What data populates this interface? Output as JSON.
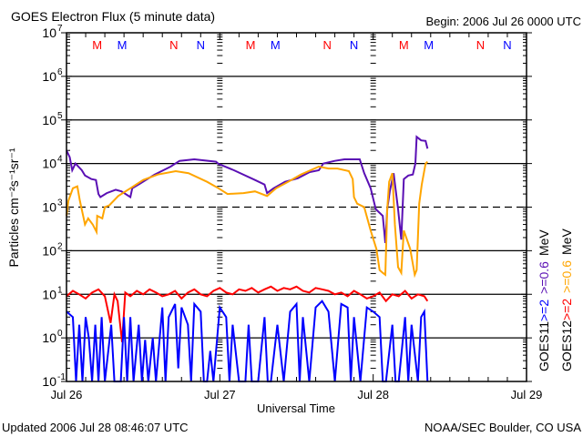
{
  "chart_data": {
    "type": "line",
    "title": "GOES Electron Flux (5 minute data)",
    "subtitle": "Begin: 2006 Jul 26 0000 UTC",
    "xlabel": "Universal Time",
    "ylabel": "Particles cm⁻²s⁻¹sr⁻¹",
    "x_unit": "hours since 2006 Jul 26 0000 UTC",
    "xlim": [
      0,
      72
    ],
    "ylim": [
      0.1,
      10000000
    ],
    "yscale": "log",
    "grid": "horizontal lines at each decade (10^3 dashed)",
    "x_ticks": [
      {
        "hour": 0,
        "label": "Jul 26"
      },
      {
        "hour": 24,
        "label": "Jul 27"
      },
      {
        "hour": 48,
        "label": "Jul 28"
      },
      {
        "hour": 72,
        "label": "Jul 29"
      }
    ],
    "y_ticks": [
      {
        "exp": 7,
        "base": "10",
        "sup": "7"
      },
      {
        "exp": 6,
        "base": "10",
        "sup": "6"
      },
      {
        "exp": 5,
        "base": "10",
        "sup": "5"
      },
      {
        "exp": 4,
        "base": "10",
        "sup": "4"
      },
      {
        "exp": 3,
        "base": "10",
        "sup": "3"
      },
      {
        "exp": 2,
        "base": "10",
        "sup": "2"
      },
      {
        "exp": 1,
        "base": "10",
        "sup": "1"
      },
      {
        "exp": 0,
        "base": "10",
        "sup": "0"
      },
      {
        "exp": -1,
        "base": "10",
        "sup": "-1"
      }
    ],
    "markers": [
      {
        "hour": 4.8,
        "label": "M",
        "color": "#ff0000"
      },
      {
        "hour": 8.7,
        "label": "M",
        "color": "#0000ff"
      },
      {
        "hour": 16.8,
        "label": "N",
        "color": "#ff0000"
      },
      {
        "hour": 21.0,
        "label": "N",
        "color": "#0000ff"
      },
      {
        "hour": 28.8,
        "label": "M",
        "color": "#ff0000"
      },
      {
        "hour": 32.7,
        "label": "M",
        "color": "#0000ff"
      },
      {
        "hour": 40.8,
        "label": "N",
        "color": "#ff0000"
      },
      {
        "hour": 45.0,
        "label": "N",
        "color": "#0000ff"
      },
      {
        "hour": 52.8,
        "label": "M",
        "color": "#ff0000"
      },
      {
        "hour": 56.7,
        "label": "M",
        "color": "#0000ff"
      },
      {
        "hour": 64.8,
        "label": "N",
        "color": "#ff0000"
      },
      {
        "hour": 69.0,
        "label": "N",
        "color": "#0000ff"
      }
    ],
    "legend": {
      "placement": "right, rotated",
      "columns": [
        {
          "satellite": "GOES11",
          "entries": [
            {
              "label": ">=2",
              "color": "#0000ff"
            },
            {
              "label": ">=0.6",
              "color": "#5a0fb4"
            }
          ],
          "unit": "MeV"
        },
        {
          "satellite": "GOES12",
          "entries": [
            {
              "label": ">=2",
              "color": "#ff0000"
            },
            {
              "label": ">=0.6",
              "color": "#ffa500"
            }
          ],
          "unit": "MeV"
        }
      ]
    },
    "series": [
      {
        "name": "GOES11 >=0.6 MeV",
        "color": "#5a0fb4",
        "points": [
          [
            0,
            20000
          ],
          [
            0.5,
            14000
          ],
          [
            0.9,
            7000
          ],
          [
            1.4,
            10000
          ],
          [
            2.4,
            7000
          ],
          [
            2.9,
            5300
          ],
          [
            3.9,
            4400
          ],
          [
            4.6,
            4200
          ],
          [
            5.0,
            2000
          ],
          [
            5.3,
            1700
          ],
          [
            6.3,
            2100
          ],
          [
            7.7,
            2500
          ],
          [
            8.6,
            2300
          ],
          [
            10.0,
            1700
          ],
          [
            10.3,
            2700
          ],
          [
            11.4,
            3400
          ],
          [
            13.8,
            5600
          ],
          [
            16.3,
            8500
          ],
          [
            17.7,
            11500
          ],
          [
            20.0,
            12500
          ],
          [
            23.4,
            11000
          ],
          [
            23.8,
            9800
          ],
          [
            26.2,
            7000
          ],
          [
            26.7,
            6500
          ],
          [
            29.5,
            4200
          ],
          [
            31.0,
            3300
          ],
          [
            31.4,
            2100
          ],
          [
            32.4,
            2700
          ],
          [
            34.2,
            3800
          ],
          [
            36.2,
            4600
          ],
          [
            38.0,
            6300
          ],
          [
            39.5,
            7000
          ],
          [
            40.2,
            10000
          ],
          [
            42.0,
            11500
          ],
          [
            43.5,
            12500
          ],
          [
            45.9,
            12500
          ],
          [
            46.6,
            6000
          ],
          [
            47.6,
            2700
          ],
          [
            48.4,
            900
          ],
          [
            49.5,
            630
          ],
          [
            49.9,
            150
          ],
          [
            50.2,
            900
          ],
          [
            50.6,
            2300
          ],
          [
            51.2,
            6000
          ],
          [
            51.9,
            900
          ],
          [
            52.4,
            180
          ],
          [
            52.8,
            4400
          ],
          [
            53.5,
            5300
          ],
          [
            54.2,
            5600
          ],
          [
            54.6,
            10000
          ],
          [
            54.8,
            41000
          ],
          [
            55.5,
            34000
          ],
          [
            56.2,
            33000
          ],
          [
            56.5,
            22000
          ]
        ]
      },
      {
        "name": "GOES12 >=0.6 MeV",
        "color": "#ffa500",
        "points": [
          [
            0,
            630
          ],
          [
            0.3,
            1400
          ],
          [
            1.0,
            2700
          ],
          [
            1.7,
            3000
          ],
          [
            2.1,
            1400
          ],
          [
            2.7,
            550
          ],
          [
            2.9,
            400
          ],
          [
            3.4,
            550
          ],
          [
            4.1,
            400
          ],
          [
            4.7,
            270
          ],
          [
            4.8,
            630
          ],
          [
            5.6,
            550
          ],
          [
            6.0,
            1000
          ],
          [
            6.7,
            1100
          ],
          [
            8.1,
            1800
          ],
          [
            10.0,
            2700
          ],
          [
            12.0,
            4200
          ],
          [
            14.3,
            5600
          ],
          [
            17.1,
            6700
          ],
          [
            19.1,
            6000
          ],
          [
            22.0,
            3800
          ],
          [
            23.8,
            2700
          ],
          [
            25.2,
            2000
          ],
          [
            27.7,
            2100
          ],
          [
            29.5,
            2300
          ],
          [
            31.4,
            1800
          ],
          [
            32.8,
            2700
          ],
          [
            34.8,
            3900
          ],
          [
            36.7,
            5600
          ],
          [
            39.5,
            8500
          ],
          [
            41.0,
            7700
          ],
          [
            42.4,
            7700
          ],
          [
            44.2,
            6700
          ],
          [
            44.8,
            4400
          ],
          [
            45.0,
            1700
          ],
          [
            45.5,
            1200
          ],
          [
            46.6,
            1000
          ],
          [
            47.6,
            290
          ],
          [
            48.5,
            110
          ],
          [
            49.0,
            36
          ],
          [
            49.5,
            31
          ],
          [
            49.9,
            28
          ],
          [
            50.2,
            900
          ],
          [
            50.5,
            3800
          ],
          [
            51.0,
            6000
          ],
          [
            51.4,
            400
          ],
          [
            51.9,
            42
          ],
          [
            52.4,
            31
          ],
          [
            52.8,
            290
          ],
          [
            53.8,
            110
          ],
          [
            54.5,
            28
          ],
          [
            54.8,
            36
          ],
          [
            55.2,
            1200
          ],
          [
            55.6,
            3300
          ],
          [
            56.2,
            10000
          ],
          [
            56.5,
            11000
          ]
        ]
      },
      {
        "name": "GOES12 >=2 MeV",
        "color": "#ff0000",
        "points": [
          [
            0,
            9
          ],
          [
            1,
            12
          ],
          [
            2,
            10
          ],
          [
            3,
            8
          ],
          [
            4,
            11
          ],
          [
            5,
            13
          ],
          [
            6,
            9
          ],
          [
            6.9,
            2.2
          ],
          [
            7.5,
            10
          ],
          [
            8,
            7
          ],
          [
            8.7,
            0.8
          ],
          [
            9.2,
            11
          ],
          [
            10,
            9
          ],
          [
            11,
            12
          ],
          [
            12,
            10
          ],
          [
            13,
            13
          ],
          [
            14,
            11
          ],
          [
            15,
            9
          ],
          [
            16,
            10
          ],
          [
            17,
            12
          ],
          [
            18,
            8
          ],
          [
            19,
            11
          ],
          [
            20,
            13
          ],
          [
            21,
            10
          ],
          [
            22,
            9
          ],
          [
            23,
            12
          ],
          [
            24,
            14
          ],
          [
            25,
            11
          ],
          [
            26,
            10
          ],
          [
            27,
            13
          ],
          [
            28,
            12
          ],
          [
            29,
            14
          ],
          [
            30,
            11
          ],
          [
            31,
            13
          ],
          [
            32,
            15
          ],
          [
            33,
            12
          ],
          [
            34,
            14
          ],
          [
            35,
            13
          ],
          [
            36,
            15
          ],
          [
            37,
            12
          ],
          [
            38,
            11
          ],
          [
            39,
            14
          ],
          [
            40,
            13
          ],
          [
            41,
            12
          ],
          [
            42,
            10
          ],
          [
            43,
            11
          ],
          [
            44,
            9
          ],
          [
            45,
            12
          ],
          [
            46,
            10
          ],
          [
            47,
            8
          ],
          [
            48,
            9
          ],
          [
            49,
            11
          ],
          [
            50,
            7
          ],
          [
            51,
            10
          ],
          [
            52,
            9
          ],
          [
            53,
            12
          ],
          [
            54,
            8
          ],
          [
            55,
            10
          ],
          [
            56,
            9
          ],
          [
            56.5,
            7
          ]
        ]
      },
      {
        "name": "GOES11 >=2 MeV",
        "color": "#0000ff",
        "points": [
          [
            0,
            4
          ],
          [
            1,
            3
          ],
          [
            1.5,
            0.1
          ],
          [
            2,
            2
          ],
          [
            2.5,
            0.1
          ],
          [
            3,
            3
          ],
          [
            3.5,
            1
          ],
          [
            4,
            0.1
          ],
          [
            4.5,
            2
          ],
          [
            5,
            0.1
          ],
          [
            5.5,
            3
          ],
          [
            6,
            0.1
          ],
          [
            7,
            2
          ],
          [
            7.5,
            0.1
          ],
          [
            8.5,
            0.1
          ],
          [
            9,
            3
          ],
          [
            9.5,
            0.1
          ],
          [
            10,
            3
          ],
          [
            10.5,
            0.1
          ],
          [
            11.3,
            2
          ],
          [
            11.8,
            0.1
          ],
          [
            12.3,
            0.9
          ],
          [
            12.8,
            0.1
          ],
          [
            13.5,
            1
          ],
          [
            14,
            0.1
          ],
          [
            15,
            5
          ],
          [
            15.5,
            0.1
          ],
          [
            16,
            3
          ],
          [
            17,
            6
          ],
          [
            17.5,
            0.2
          ],
          [
            18,
            5
          ],
          [
            19,
            2
          ],
          [
            19.5,
            0.1
          ],
          [
            20,
            6
          ],
          [
            21,
            4
          ],
          [
            21.5,
            0.1
          ],
          [
            22,
            0.1
          ],
          [
            22.5,
            0.5
          ],
          [
            23,
            0.1
          ],
          [
            24,
            5
          ],
          [
            25,
            3
          ],
          [
            25.5,
            0.1
          ],
          [
            26,
            2
          ],
          [
            27,
            0.1
          ],
          [
            28,
            0.1
          ],
          [
            28.5,
            2
          ],
          [
            29,
            0.1
          ],
          [
            30,
            0.1
          ],
          [
            31,
            3
          ],
          [
            31.5,
            0.1
          ],
          [
            32,
            0.1
          ],
          [
            33,
            2
          ],
          [
            34,
            0.1
          ],
          [
            35,
            4
          ],
          [
            36,
            6
          ],
          [
            36.5,
            0.1
          ],
          [
            37,
            3
          ],
          [
            38,
            0.1
          ],
          [
            39,
            5
          ],
          [
            40,
            7
          ],
          [
            41,
            4
          ],
          [
            42,
            0.1
          ],
          [
            43,
            6
          ],
          [
            44,
            5
          ],
          [
            44.5,
            0.1
          ],
          [
            45,
            3
          ],
          [
            46,
            0.1
          ],
          [
            47,
            5
          ],
          [
            48,
            4
          ],
          [
            49,
            3
          ],
          [
            49.5,
            0.1
          ],
          [
            50,
            0.1
          ],
          [
            51,
            2
          ],
          [
            51.5,
            0.1
          ],
          [
            52,
            0.1
          ],
          [
            53,
            3
          ],
          [
            53.5,
            0.1
          ],
          [
            54,
            2
          ],
          [
            55,
            0.1
          ],
          [
            55.5,
            3
          ],
          [
            56,
            4
          ],
          [
            56.5,
            0.1
          ]
        ]
      }
    ]
  },
  "footer": {
    "updated": "Updated 2006 Jul 28 08:46:07 UTC",
    "credit": "NOAA/SEC Boulder, CO USA"
  }
}
